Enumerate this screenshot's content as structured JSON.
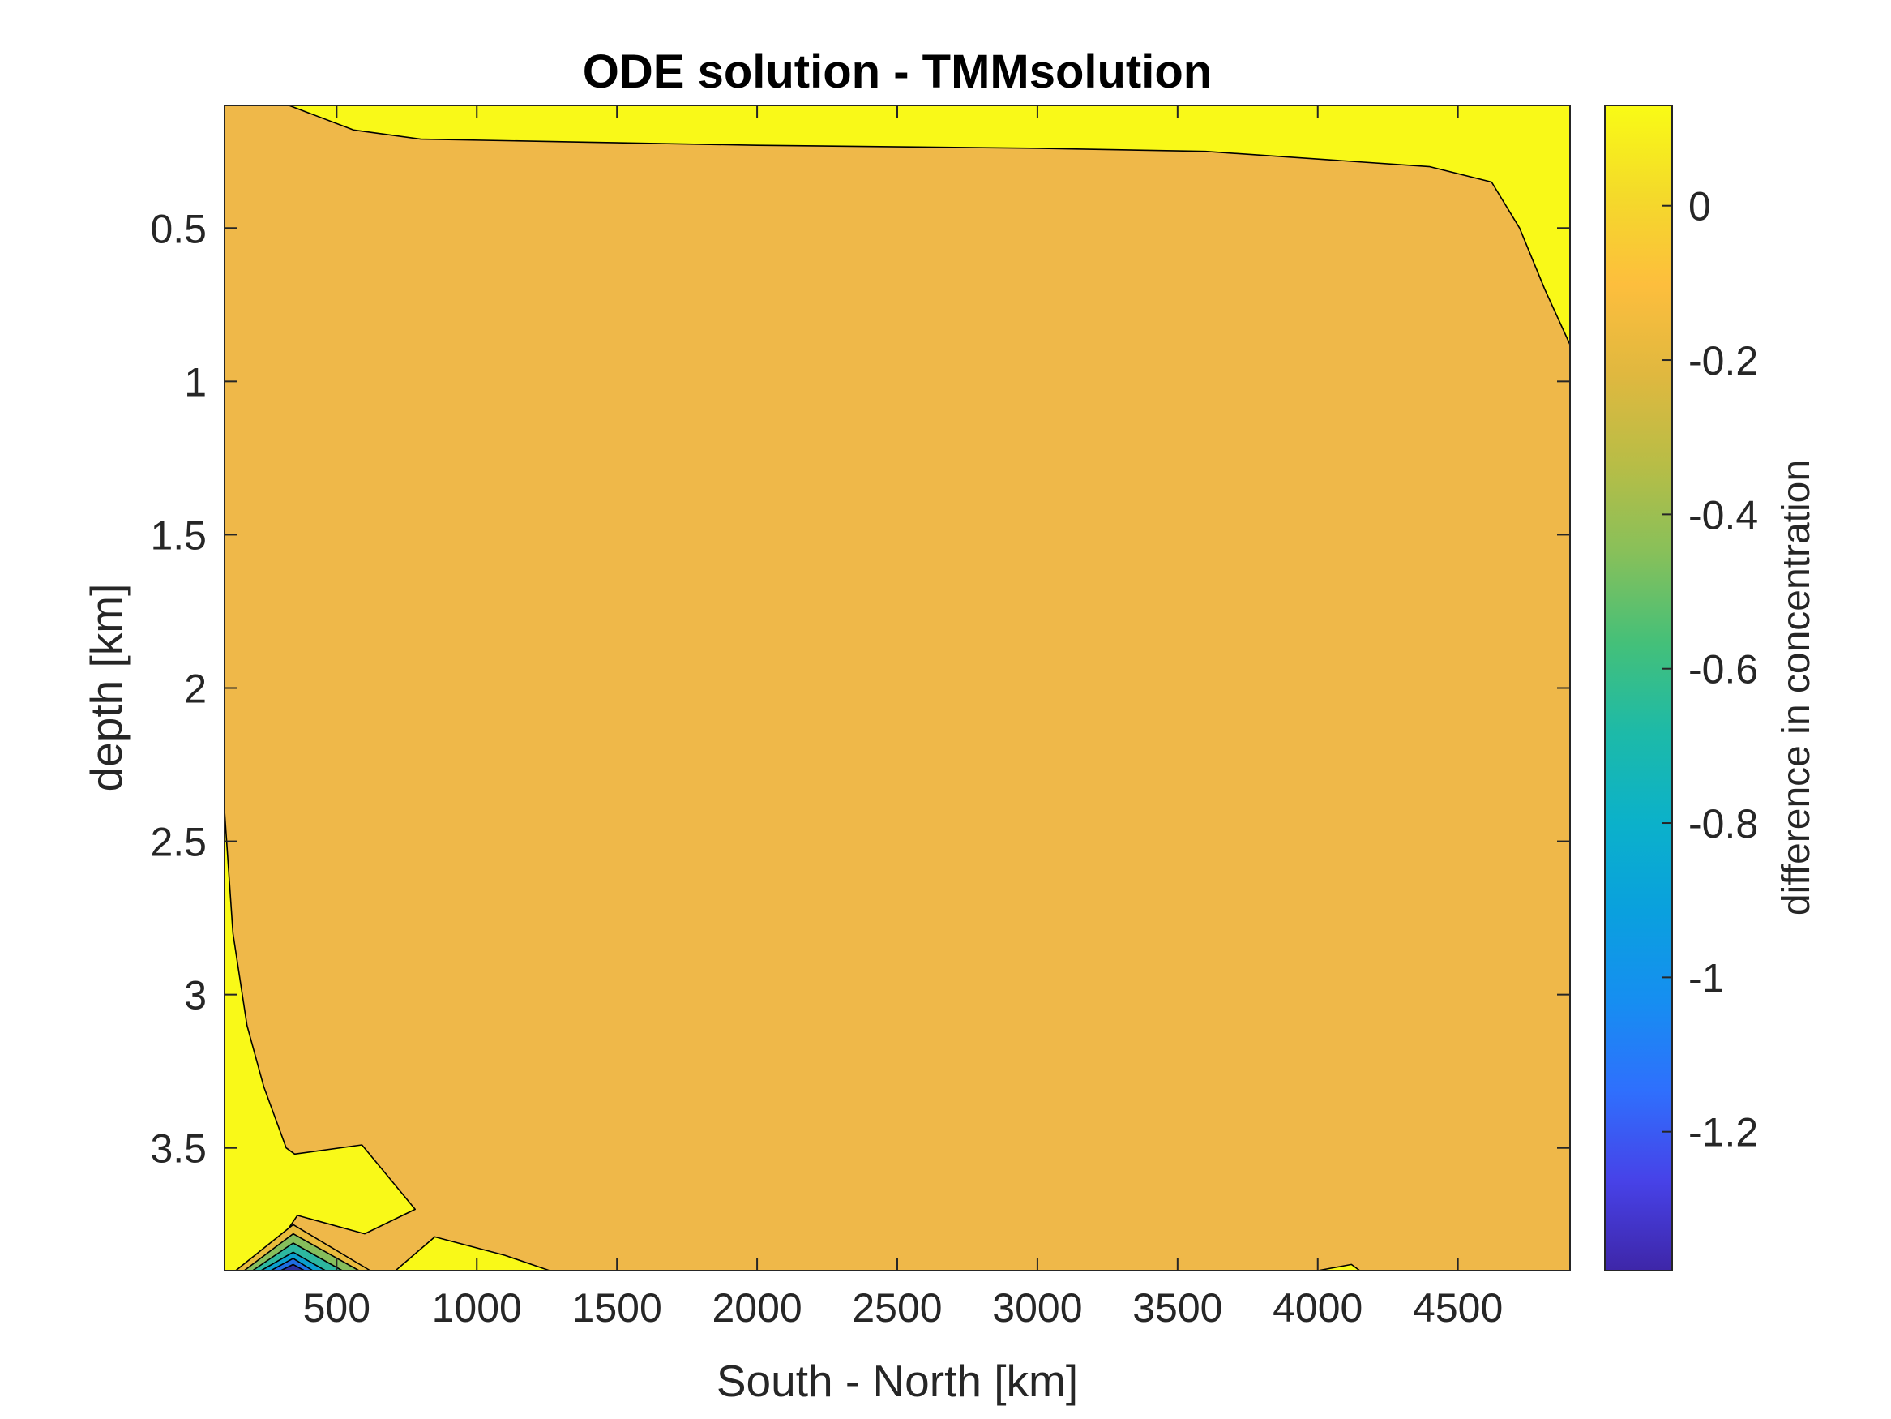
{
  "chart_data": {
    "type": "contourf",
    "title": "ODE solution - TMMsolution",
    "xlabel": "South - North [km]",
    "ylabel": "depth [km]",
    "xlim": [
      100,
      4900
    ],
    "ylim": [
      0.1,
      3.9
    ],
    "y_reversed": true,
    "x_ticks": [
      500,
      1000,
      1500,
      2000,
      2500,
      3000,
      3500,
      4000,
      4500
    ],
    "x_tick_labels": [
      "500",
      "1000",
      "1500",
      "2000",
      "2500",
      "3000",
      "3500",
      "4000",
      "4500"
    ],
    "y_ticks": [
      0.5,
      1,
      1.5,
      2,
      2.5,
      3,
      3.5
    ],
    "y_tick_labels": [
      "0.5",
      "1",
      "1.5",
      "2",
      "2.5",
      "3",
      "3.5"
    ],
    "background_level_color": "#efb849",
    "regions": [
      {
        "name": "surface-positive",
        "level": 0.05,
        "color": "#f9f918",
        "points": [
          [
            100,
            0.1
          ],
          [
            330,
            0.1
          ],
          [
            560,
            0.18
          ],
          [
            800,
            0.21
          ],
          [
            1400,
            0.22
          ],
          [
            2000,
            0.23
          ],
          [
            3000,
            0.24
          ],
          [
            3600,
            0.25
          ],
          [
            4400,
            0.3
          ],
          [
            4620,
            0.35
          ],
          [
            4720,
            0.5
          ],
          [
            4810,
            0.7
          ],
          [
            4900,
            0.88
          ],
          [
            4900,
            0.1
          ]
        ]
      },
      {
        "name": "western-boundary-positive",
        "level": 0.05,
        "color": "#f9f918",
        "points": [
          [
            100,
            2.4
          ],
          [
            130,
            2.8
          ],
          [
            180,
            3.1
          ],
          [
            240,
            3.3
          ],
          [
            320,
            3.5
          ],
          [
            350,
            3.52
          ],
          [
            590,
            3.49
          ],
          [
            780,
            3.7
          ],
          [
            600,
            3.78
          ],
          [
            360,
            3.72
          ],
          [
            300,
            3.8
          ],
          [
            180,
            3.9
          ],
          [
            100,
            3.9
          ]
        ]
      },
      {
        "name": "bottom-positive-1",
        "level": 0.05,
        "color": "#f9f918",
        "points": [
          [
            710,
            3.9
          ],
          [
            850,
            3.79
          ],
          [
            1100,
            3.85
          ],
          [
            1260,
            3.9
          ]
        ]
      },
      {
        "name": "bottom-positive-2",
        "level": 0.05,
        "color": "#f9f918",
        "points": [
          [
            4000,
            3.9
          ],
          [
            4120,
            3.88
          ],
          [
            4150,
            3.9
          ]
        ]
      },
      {
        "name": "deep-level-1",
        "level": -0.1,
        "color": "#e9bb3d",
        "points": [
          [
            140,
            3.9
          ],
          [
            345,
            3.75
          ],
          [
            620,
            3.9
          ]
        ]
      },
      {
        "name": "deep-level-2",
        "level": -0.35,
        "color": "#86be5c",
        "points": [
          [
            170,
            3.9
          ],
          [
            345,
            3.78
          ],
          [
            580,
            3.9
          ]
        ]
      },
      {
        "name": "deep-level-3",
        "level": -0.6,
        "color": "#2db8a0",
        "points": [
          [
            200,
            3.9
          ],
          [
            345,
            3.81
          ],
          [
            520,
            3.9
          ]
        ]
      },
      {
        "name": "deep-level-4",
        "level": -0.85,
        "color": "#0b9fce",
        "points": [
          [
            230,
            3.9
          ],
          [
            345,
            3.84
          ],
          [
            460,
            3.9
          ]
        ]
      },
      {
        "name": "deep-level-5",
        "level": -1.1,
        "color": "#1f6ee4",
        "points": [
          [
            265,
            3.9
          ],
          [
            345,
            3.86
          ],
          [
            415,
            3.9
          ]
        ]
      },
      {
        "name": "deep-level-6",
        "level": -1.35,
        "color": "#2d2f9f",
        "points": [
          [
            300,
            3.9
          ],
          [
            345,
            3.88
          ],
          [
            385,
            3.9
          ]
        ]
      }
    ],
    "colorbar": {
      "label": "difference in concentration",
      "min": -1.38,
      "max": 0.13,
      "ticks": [
        0,
        -0.2,
        -0.4,
        -0.6,
        -0.8,
        -1,
        -1.2
      ],
      "tick_labels": [
        "0",
        "-0.2",
        "-0.4",
        "-0.6",
        "-0.8",
        "-1",
        "-1.2"
      ],
      "colormap": [
        "#3e26a8",
        "#4742e8",
        "#2f6ffd",
        "#168ef1",
        "#0aa0de",
        "#0bb1ca",
        "#1dbaa8",
        "#44c079",
        "#87c05a",
        "#b8bd46",
        "#e0b83f",
        "#fdbe3d",
        "#f4da2a",
        "#f9fb15"
      ]
    }
  }
}
